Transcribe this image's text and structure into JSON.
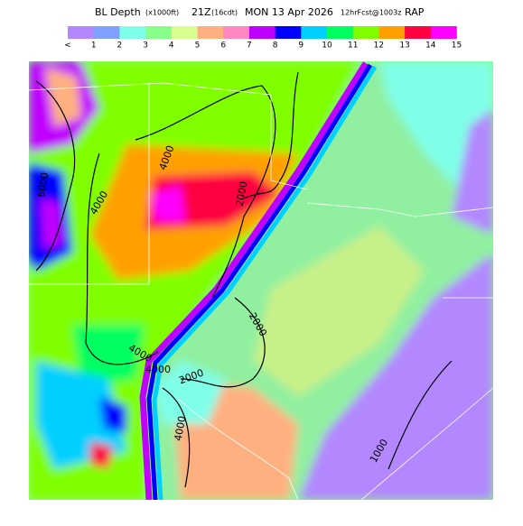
{
  "header": {
    "variable": "BL Depth",
    "units": "(x1000ft)",
    "valid_time": "21Z",
    "local_time": "(16cdt)",
    "date": "MON 13 Apr 2026",
    "forecast": "12hrFcst@1003z",
    "model": "RAP"
  },
  "legend": {
    "labels": [
      "<",
      "1",
      "2",
      "3",
      "4",
      "5",
      "6",
      "7",
      "8",
      "9",
      "10",
      "11",
      "12",
      "13",
      "14",
      "15"
    ],
    "colors": [
      "#b388ff",
      "#7fa0ff",
      "#80ffe8",
      "#88ff88",
      "#d8ff90",
      "#ffb080",
      "#ff88c0",
      "#c000ff",
      "#0000ff",
      "#00d0ff",
      "#00ff60",
      "#80ff00",
      "#ffa000",
      "#ff0040",
      "#ff00ff"
    ]
  },
  "map": {
    "contour_labels": [
      "4000",
      "2000",
      "4000",
      "6000",
      "2000",
      "2000",
      "4000",
      "4000",
      "4000",
      "1000"
    ]
  }
}
